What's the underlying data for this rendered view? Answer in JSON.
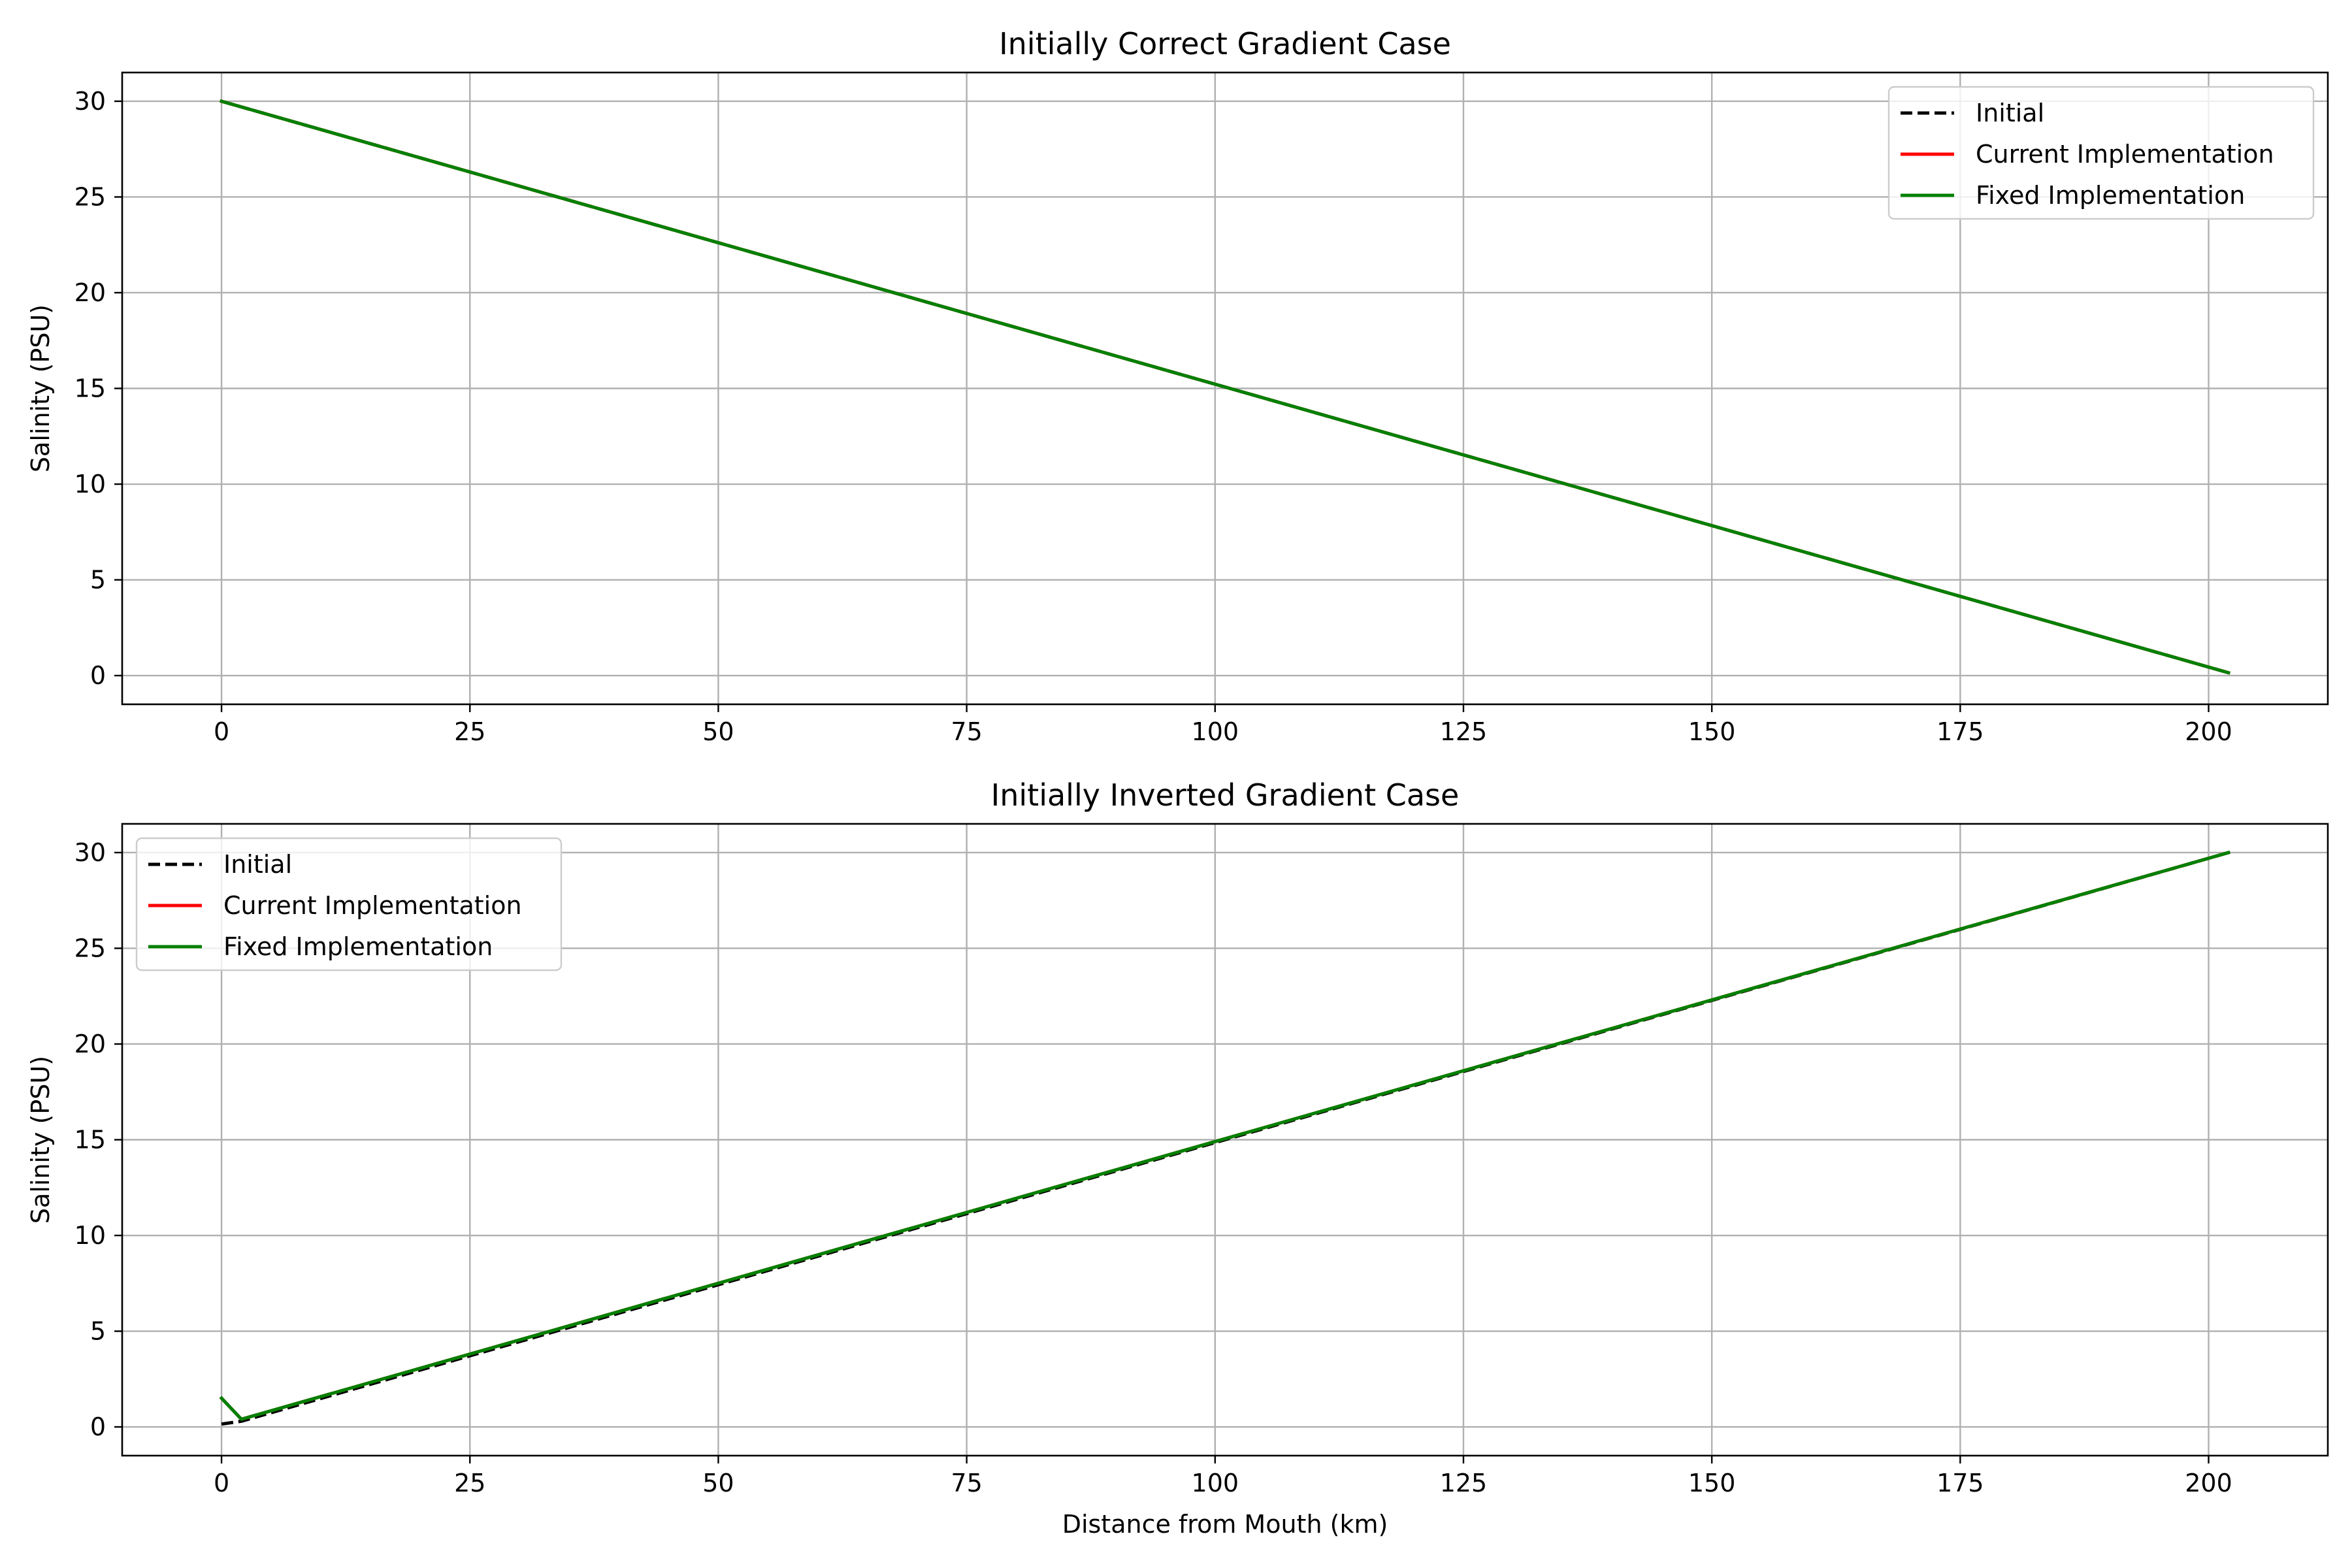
{
  "chart_data": [
    {
      "type": "line",
      "title": "Initially Correct Gradient Case",
      "xlabel": "",
      "ylabel": "Salinity (PSU)",
      "xlim": [
        -10,
        212
      ],
      "ylim": [
        -1.5,
        31.5
      ],
      "xticks": [
        0,
        25,
        50,
        75,
        100,
        125,
        150,
        175,
        200
      ],
      "yticks": [
        0,
        5,
        10,
        15,
        20,
        25,
        30
      ],
      "grid": true,
      "legend_position": "upper right",
      "series": [
        {
          "name": "Initial",
          "color": "#000000",
          "dash": "dashed",
          "x": [
            0,
            202
          ],
          "y": [
            30,
            0.15
          ]
        },
        {
          "name": "Current Implementation",
          "color": "#ff0000",
          "dash": "solid",
          "x": [
            0,
            202
          ],
          "y": [
            30,
            0.15
          ]
        },
        {
          "name": "Fixed Implementation",
          "color": "#008000",
          "dash": "solid",
          "x": [
            0,
            202
          ],
          "y": [
            30,
            0.15
          ]
        }
      ]
    },
    {
      "type": "line",
      "title": "Initially Inverted Gradient Case",
      "xlabel": "Distance from Mouth (km)",
      "ylabel": "Salinity (PSU)",
      "xlim": [
        -10,
        212
      ],
      "ylim": [
        -1.5,
        31.5
      ],
      "xticks": [
        0,
        25,
        50,
        75,
        100,
        125,
        150,
        175,
        200
      ],
      "yticks": [
        0,
        5,
        10,
        15,
        20,
        25,
        30
      ],
      "grid": true,
      "legend_position": "upper left",
      "series": [
        {
          "name": "Initial",
          "color": "#000000",
          "dash": "dashed",
          "x": [
            0,
            2,
            202
          ],
          "y": [
            0.15,
            0.3,
            30
          ]
        },
        {
          "name": "Current Implementation",
          "color": "#ff0000",
          "dash": "solid",
          "x": [
            0,
            2,
            202
          ],
          "y": [
            1.5,
            0.4,
            30
          ]
        },
        {
          "name": "Fixed Implementation",
          "color": "#008000",
          "dash": "solid",
          "x": [
            0,
            2,
            202
          ],
          "y": [
            1.5,
            0.4,
            30
          ]
        }
      ]
    }
  ]
}
